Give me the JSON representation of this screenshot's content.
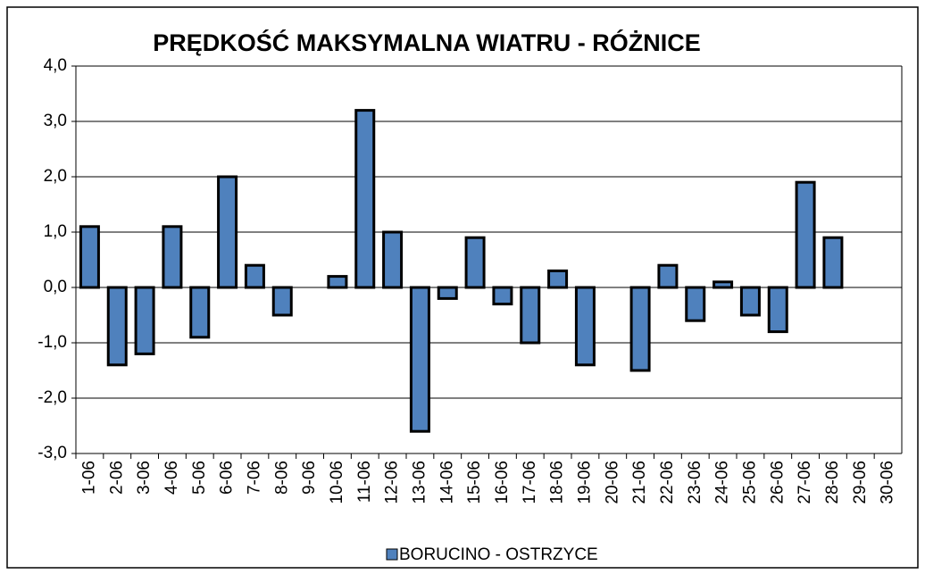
{
  "chart_data": {
    "type": "bar",
    "title": "PRĘDKOŚĆ MAKSYMALNA WIATRU - RÓŻNICE",
    "categories": [
      "1-06",
      "2-06",
      "3-06",
      "4-06",
      "5-06",
      "6-06",
      "7-06",
      "8-06",
      "9-06",
      "10-06",
      "11-06",
      "12-06",
      "13-06",
      "14-06",
      "15-06",
      "16-06",
      "17-06",
      "18-06",
      "19-06",
      "20-06",
      "21-06",
      "22-06",
      "23-06",
      "24-06",
      "25-06",
      "26-06",
      "27-06",
      "28-06",
      "29-06",
      "30-06"
    ],
    "series": [
      {
        "name": "BORUCINO - OSTRZYCE",
        "color": "#4f81bd",
        "values": [
          1.1,
          -1.4,
          -1.2,
          1.1,
          -0.9,
          2.0,
          0.4,
          -0.5,
          null,
          0.2,
          3.2,
          1.0,
          -2.6,
          -0.2,
          0.9,
          -0.3,
          -1.0,
          0.3,
          -1.4,
          null,
          -1.5,
          0.4,
          -0.6,
          0.1,
          -0.5,
          -0.8,
          1.9,
          0.9,
          null,
          null
        ]
      }
    ],
    "ylim": [
      -3,
      4
    ],
    "yticks": [
      {
        "value": -3,
        "label": "-3,0"
      },
      {
        "value": -2,
        "label": "-2,0"
      },
      {
        "value": -1,
        "label": "-1,0"
      },
      {
        "value": 0,
        "label": "0,0"
      },
      {
        "value": 1,
        "label": "1,0"
      },
      {
        "value": 2,
        "label": "2,0"
      },
      {
        "value": 3,
        "label": "3,0"
      },
      {
        "value": 4,
        "label": "4,0"
      }
    ],
    "grid": true,
    "legend": "bottom"
  }
}
